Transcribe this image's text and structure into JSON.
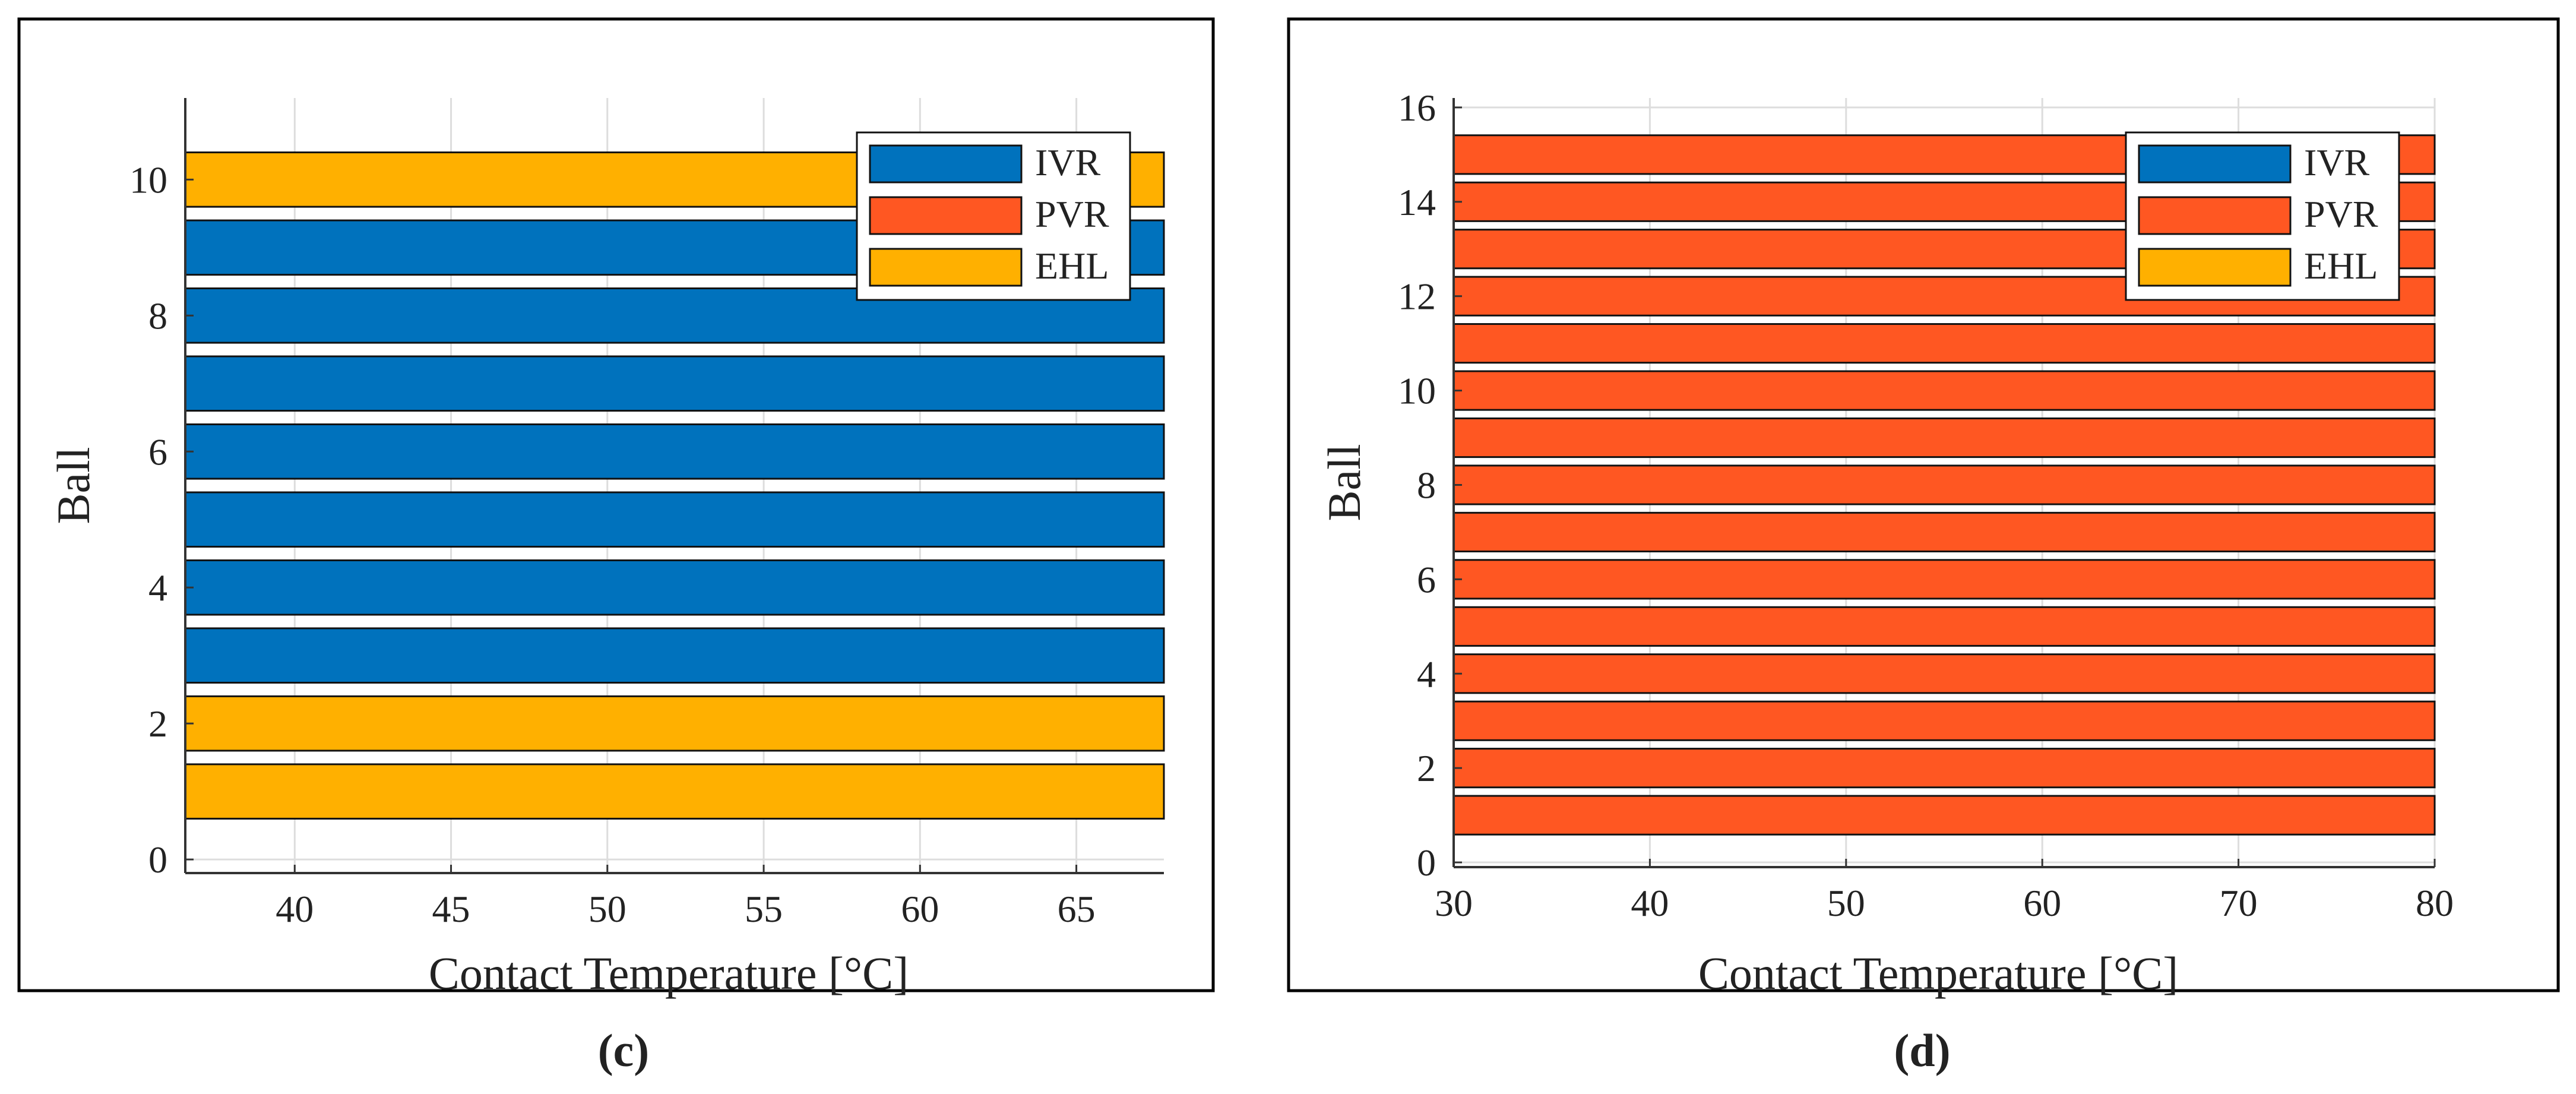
{
  "colors": {
    "IVR": "#0072BD",
    "PVR": "#FF5722",
    "EHL": "#FFB000",
    "grid": "#DDDDDD",
    "axis": "#333333"
  },
  "chart_data": [
    {
      "type": "bar",
      "orientation": "horizontal",
      "panel_label": "(c)",
      "xlabel": "Contact Temperature [°C]",
      "ylabel": "Ball",
      "xlim": [
        36.5,
        67.8
      ],
      "ylim": [
        -0.2,
        11.2
      ],
      "xticks": [
        40,
        45,
        50,
        55,
        60,
        65
      ],
      "yticks": [
        0,
        2,
        4,
        6,
        8,
        10
      ],
      "grid": true,
      "legend": {
        "position": "top-right",
        "entries": [
          "IVR",
          "PVR",
          "EHL"
        ]
      },
      "bars": [
        {
          "ball": 1,
          "category": "EHL",
          "value": 67.8
        },
        {
          "ball": 2,
          "category": "EHL",
          "value": 67.8
        },
        {
          "ball": 3,
          "category": "IVR",
          "value": 67.8
        },
        {
          "ball": 4,
          "category": "IVR",
          "value": 67.8
        },
        {
          "ball": 5,
          "category": "IVR",
          "value": 67.8
        },
        {
          "ball": 6,
          "category": "IVR",
          "value": 67.8
        },
        {
          "ball": 7,
          "category": "IVR",
          "value": 67.8
        },
        {
          "ball": 8,
          "category": "IVR",
          "value": 67.8
        },
        {
          "ball": 9,
          "category": "IVR",
          "value": 67.8
        },
        {
          "ball": 10,
          "category": "EHL",
          "value": 67.8
        }
      ]
    },
    {
      "type": "bar",
      "orientation": "horizontal",
      "panel_label": "(d)",
      "xlabel": "Contact Temperature [°C]",
      "ylabel": "Ball",
      "xlim": [
        30,
        80
      ],
      "ylim": [
        -0.1,
        16.2
      ],
      "xticks": [
        30,
        40,
        50,
        60,
        70,
        80
      ],
      "yticks": [
        0,
        2,
        4,
        6,
        8,
        10,
        12,
        14,
        16
      ],
      "grid": true,
      "legend": {
        "position": "top-right",
        "entries": [
          "IVR",
          "PVR",
          "EHL"
        ]
      },
      "bars": [
        {
          "ball": 1,
          "category": "PVR",
          "value": 80
        },
        {
          "ball": 2,
          "category": "PVR",
          "value": 80
        },
        {
          "ball": 3,
          "category": "PVR",
          "value": 80
        },
        {
          "ball": 4,
          "category": "PVR",
          "value": 80
        },
        {
          "ball": 5,
          "category": "PVR",
          "value": 80
        },
        {
          "ball": 6,
          "category": "PVR",
          "value": 80
        },
        {
          "ball": 7,
          "category": "PVR",
          "value": 80
        },
        {
          "ball": 8,
          "category": "PVR",
          "value": 80
        },
        {
          "ball": 9,
          "category": "PVR",
          "value": 80
        },
        {
          "ball": 10,
          "category": "PVR",
          "value": 80
        },
        {
          "ball": 11,
          "category": "PVR",
          "value": 80
        },
        {
          "ball": 12,
          "category": "PVR",
          "value": 80
        },
        {
          "ball": 13,
          "category": "PVR",
          "value": 80
        },
        {
          "ball": 14,
          "category": "PVR",
          "value": 80
        },
        {
          "ball": 15,
          "category": "PVR",
          "value": 80
        }
      ]
    }
  ]
}
